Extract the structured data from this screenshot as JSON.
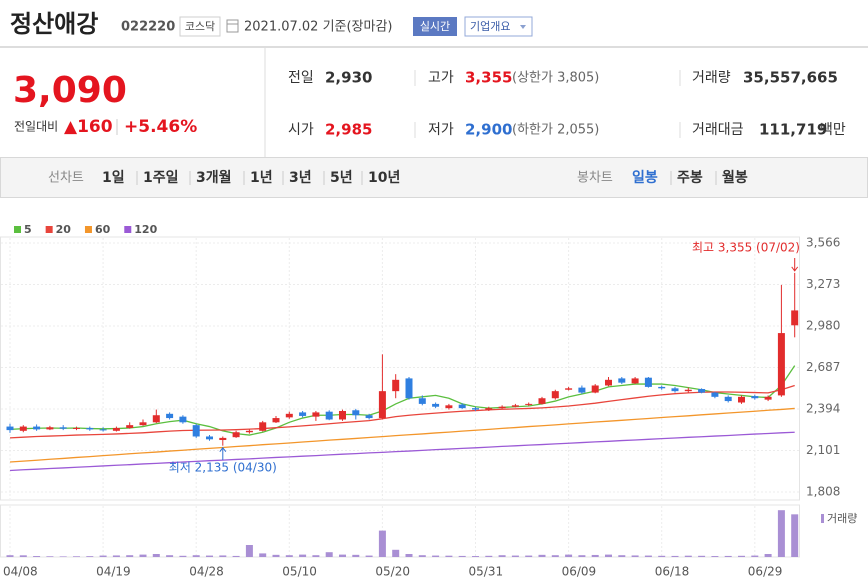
{
  "header": {
    "name": "정산애강",
    "code": "022220",
    "market": "코스닥",
    "date": "2021.07.02 기준(장마감)",
    "realtime": "실시간",
    "company": "기업개요"
  },
  "quote": {
    "price": "3,090",
    "change_label": "전일대비",
    "change": "▲160",
    "change_pct": "+5.46%",
    "prev": {
      "label": "전일",
      "value": "2,930"
    },
    "open": {
      "label": "시가",
      "value": "2,985"
    },
    "high": {
      "label": "고가",
      "value": "3,355",
      "extra": "(상한가 3,805)"
    },
    "low": {
      "label": "저가",
      "value": "2,900",
      "extra": "(하한가 2,055)"
    },
    "volume": {
      "label": "거래량",
      "value": "35,557,665"
    },
    "amount": {
      "label": "거래대금",
      "value": "111,719",
      "unit": "백만"
    }
  },
  "periods": {
    "line_label": "선차트",
    "line": [
      "1일",
      "1주일",
      "3개월",
      "1년",
      "3년",
      "5년",
      "10년"
    ],
    "candle_label": "봉차트",
    "candle": [
      "일봉",
      "주봉",
      "월봉"
    ],
    "active": "일봉"
  },
  "chart_data": {
    "type": "candlestick",
    "categories": [
      "04/08",
      null,
      null,
      null,
      null,
      null,
      null,
      "04/19",
      null,
      null,
      null,
      null,
      null,
      null,
      "04/28",
      null,
      null,
      null,
      null,
      null,
      null,
      "05/10",
      null,
      null,
      null,
      null,
      null,
      null,
      "05/20",
      null,
      null,
      null,
      null,
      null,
      null,
      "05/31",
      null,
      null,
      null,
      null,
      null,
      null,
      "06/09",
      null,
      null,
      null,
      null,
      null,
      null,
      "06/18",
      null,
      null,
      null,
      null,
      null,
      null,
      "06/29",
      null,
      null,
      null
    ],
    "open": [
      2270,
      2240,
      2270,
      2250,
      2265,
      2255,
      2260,
      2250,
      2240,
      2260,
      2280,
      2300,
      2360,
      2340,
      2280,
      2200,
      2175,
      2195,
      2230,
      2240,
      2300,
      2335,
      2370,
      2340,
      2375,
      2320,
      2385,
      2350,
      2330,
      2520,
      2610,
      2470,
      2430,
      2400,
      2425,
      2400,
      2390,
      2400,
      2410,
      2425,
      2430,
      2470,
      2530,
      2545,
      2510,
      2560,
      2610,
      2575,
      2615,
      2550,
      2540,
      2520,
      2535,
      2510,
      2480,
      2440,
      2485,
      2460,
      2490,
      2985
    ],
    "high": [
      2290,
      2280,
      2285,
      2275,
      2280,
      2270,
      2270,
      2265,
      2270,
      2300,
      2320,
      2390,
      2370,
      2350,
      2290,
      2210,
      2200,
      2240,
      2250,
      2310,
      2345,
      2375,
      2380,
      2380,
      2385,
      2390,
      2395,
      2360,
      2780,
      2640,
      2620,
      2490,
      2440,
      2430,
      2435,
      2410,
      2410,
      2420,
      2430,
      2440,
      2480,
      2530,
      2550,
      2560,
      2570,
      2620,
      2620,
      2620,
      2620,
      2560,
      2550,
      2545,
      2540,
      2515,
      2490,
      2490,
      2495,
      2490,
      3270,
      3355
    ],
    "low": [
      2225,
      2230,
      2240,
      2245,
      2245,
      2245,
      2240,
      2235,
      2235,
      2255,
      2275,
      2295,
      2320,
      2290,
      2190,
      2170,
      2135,
      2190,
      2220,
      2235,
      2295,
      2325,
      2335,
      2310,
      2315,
      2310,
      2320,
      2320,
      2320,
      2470,
      2460,
      2420,
      2400,
      2390,
      2395,
      2380,
      2380,
      2395,
      2405,
      2415,
      2425,
      2460,
      2525,
      2500,
      2505,
      2555,
      2570,
      2570,
      2545,
      2530,
      2510,
      2510,
      2505,
      2470,
      2440,
      2430,
      2460,
      2450,
      2480,
      2900
    ],
    "close": [
      2245,
      2270,
      2250,
      2265,
      2255,
      2260,
      2250,
      2245,
      2260,
      2280,
      2300,
      2350,
      2330,
      2300,
      2200,
      2180,
      2190,
      2230,
      2240,
      2300,
      2330,
      2360,
      2345,
      2370,
      2320,
      2380,
      2350,
      2330,
      2520,
      2600,
      2470,
      2430,
      2410,
      2420,
      2400,
      2390,
      2400,
      2410,
      2420,
      2430,
      2470,
      2520,
      2540,
      2510,
      2560,
      2600,
      2580,
      2610,
      2550,
      2540,
      2520,
      2530,
      2510,
      2480,
      2450,
      2480,
      2470,
      2480,
      2930,
      3090
    ],
    "up_color": "#e22c2c",
    "down_color": "#2f7fe0",
    "series": [
      {
        "name": "5",
        "color": "#5bbf3f",
        "values": [
          2250,
          2255,
          2258,
          2260,
          2258,
          2260,
          2256,
          2254,
          2256,
          2260,
          2270,
          2290,
          2305,
          2315,
          2290,
          2270,
          2240,
          2220,
          2210,
          2230,
          2260,
          2300,
          2330,
          2350,
          2350,
          2355,
          2355,
          2350,
          2380,
          2430,
          2470,
          2480,
          2490,
          2470,
          2430,
          2410,
          2400,
          2405,
          2410,
          2415,
          2430,
          2450,
          2480,
          2500,
          2520,
          2550,
          2560,
          2570,
          2570,
          2570,
          2560,
          2545,
          2530,
          2510,
          2500,
          2490,
          2480,
          2475,
          2560,
          2700
        ]
      },
      {
        "name": "20",
        "color": "#e8453c",
        "values": [
          2190,
          2195,
          2200,
          2203,
          2206,
          2210,
          2212,
          2215,
          2218,
          2222,
          2226,
          2232,
          2238,
          2242,
          2244,
          2245,
          2246,
          2248,
          2252,
          2256,
          2262,
          2268,
          2275,
          2282,
          2290,
          2298,
          2305,
          2312,
          2325,
          2340,
          2350,
          2358,
          2365,
          2372,
          2378,
          2383,
          2388,
          2392,
          2395,
          2398,
          2402,
          2408,
          2415,
          2425,
          2435,
          2448,
          2460,
          2472,
          2484,
          2494,
          2502,
          2508,
          2512,
          2514,
          2514,
          2512,
          2510,
          2508,
          2530,
          2560
        ]
      },
      {
        "name": "60",
        "color": "#f3962b",
        "values": [
          2020,
          2026,
          2032,
          2039,
          2045,
          2052,
          2058,
          2065,
          2071,
          2078,
          2084,
          2090,
          2097,
          2103,
          2110,
          2116,
          2122,
          2129,
          2135,
          2142,
          2148,
          2154,
          2161,
          2167,
          2174,
          2180,
          2186,
          2193,
          2199,
          2206,
          2212,
          2218,
          2225,
          2231,
          2238,
          2244,
          2250,
          2257,
          2263,
          2270,
          2276,
          2282,
          2289,
          2295,
          2302,
          2308,
          2314,
          2321,
          2327,
          2334,
          2340,
          2346,
          2353,
          2359,
          2366,
          2372,
          2378,
          2385,
          2391,
          2398
        ]
      },
      {
        "name": "120",
        "color": "#9b5ad6",
        "values": [
          1960,
          1965,
          1969,
          1974,
          1978,
          1983,
          1987,
          1992,
          1997,
          2001,
          2006,
          2010,
          2015,
          2020,
          2024,
          2029,
          2033,
          2038,
          2042,
          2047,
          2052,
          2056,
          2061,
          2065,
          2070,
          2075,
          2079,
          2084,
          2088,
          2093,
          2097,
          2102,
          2107,
          2111,
          2116,
          2120,
          2125,
          2130,
          2134,
          2139,
          2143,
          2148,
          2152,
          2157,
          2162,
          2166,
          2171,
          2175,
          2180,
          2185,
          2189,
          2194,
          2198,
          2203,
          2207,
          2212,
          2217,
          2221,
          2226,
          2230
        ]
      }
    ],
    "volume": {
      "name": "거래량",
      "color": "#a98fd4",
      "ylim": [
        0,
        40000000
      ],
      "values": [
        1500000,
        1400000,
        800000,
        600000,
        500000,
        600000,
        700000,
        1200000,
        1300000,
        1500000,
        2000000,
        2500000,
        1500000,
        1000000,
        1500000,
        1200000,
        1300000,
        900000,
        10000000,
        3000000,
        1800000,
        1500000,
        2000000,
        1500000,
        4000000,
        2000000,
        1800000,
        1200000,
        22000000,
        6000000,
        2500000,
        1500000,
        1200000,
        1100000,
        900000,
        800000,
        1000000,
        1500000,
        1200000,
        1200000,
        1800000,
        1500000,
        2000000,
        1500000,
        1700000,
        2000000,
        1500000,
        1300000,
        1200000,
        1000000,
        900000,
        1100000,
        1000000,
        800000,
        900000,
        1000000,
        1200000,
        2500000,
        39000000,
        35557665
      ]
    },
    "ylim": [
      1808,
      3566
    ],
    "yticks": [
      {
        "value": 1808,
        "label": "1,808"
      },
      {
        "value": 2101,
        "label": "2,101"
      },
      {
        "value": 2394,
        "label": "2,394"
      },
      {
        "value": 2687,
        "label": "2,687"
      },
      {
        "value": 2980,
        "label": "2,980"
      },
      {
        "value": 3273,
        "label": "3,273"
      },
      {
        "value": 3566,
        "label": "3,566"
      }
    ],
    "grid": true,
    "annotations": {
      "high": "최고 3,355 (07/02)",
      "low": "최저 2,135 (04/30)"
    }
  }
}
